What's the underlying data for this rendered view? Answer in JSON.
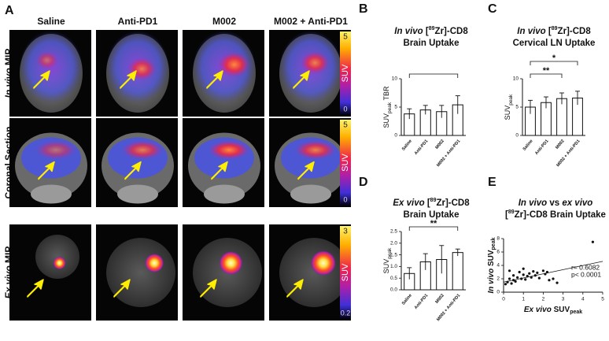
{
  "figure": {
    "label": "A",
    "columns": [
      "Saline",
      "Anti-PD1",
      "M002",
      "M002 + Anti-PD1"
    ],
    "rows": [
      {
        "italic": "In vivo",
        "rest": " MIP"
      },
      {
        "italic": "",
        "rest": "Coronal Section"
      },
      {
        "italic": "Ex vivo",
        "rest": " MIP"
      }
    ],
    "colorbars": [
      {
        "max": "5",
        "min": "0",
        "unit": "SUV"
      },
      {
        "max": "5",
        "min": "0",
        "unit": "SUV"
      },
      {
        "max": "3",
        "min": "0.2",
        "unit": "SUV"
      }
    ]
  },
  "chart_data": [
    {
      "type": "bar",
      "label": "B",
      "title": {
        "italic": "In vivo",
        "pre": " [",
        "sup": "89",
        "post": "Zr]-CD8",
        "line2": "Brain Uptake"
      },
      "ylabel": {
        "main": "SUV",
        "sub": "peak",
        "rest": " TBR"
      },
      "categories": [
        "Saline",
        "Anti-PD1",
        "M002",
        "M002 + Anti-PD1"
      ],
      "values": [
        3.8,
        4.5,
        4.2,
        5.4
      ],
      "errors": [
        0.9,
        0.8,
        1.1,
        1.6
      ],
      "color": "#ffffff",
      "ylim": [
        0,
        10
      ],
      "yticks": [
        0,
        5,
        10
      ],
      "brackets": [
        {
          "label": "",
          "between": [
            "Saline",
            "M002 + Anti-PD1"
          ]
        }
      ]
    },
    {
      "type": "bar",
      "label": "C",
      "title": {
        "italic": "In vivo",
        "pre": " [",
        "sup": "89",
        "post": "Zr]-CD8",
        "line2": "Cervical LN Uptake"
      },
      "ylabel": {
        "main": "SUV",
        "sub": "peak",
        "rest": ""
      },
      "categories": [
        "Saline",
        "Anti-PD1",
        "M002",
        "M002 + Anti-PD1"
      ],
      "values": [
        5.0,
        5.8,
        6.5,
        6.6
      ],
      "errors": [
        1.2,
        1.0,
        1.0,
        1.2
      ],
      "color": "#ffffff",
      "ylim": [
        0,
        10
      ],
      "yticks": [
        0,
        5,
        10
      ],
      "brackets": [
        {
          "label": "**",
          "between": [
            "Saline",
            "M002"
          ]
        },
        {
          "label": "*",
          "between": [
            "Saline",
            "M002 + Anti-PD1"
          ]
        }
      ]
    },
    {
      "type": "bar",
      "label": "D",
      "title": {
        "italic": "Ex vivo",
        "pre": " [",
        "sup": "89",
        "post": "Zr]-CD8",
        "line2": "Brain Uptake"
      },
      "ylabel": {
        "main": "SUV",
        "sub": "peak",
        "rest": ""
      },
      "categories": [
        "Saline",
        "Anti-PD1",
        "M002",
        "M002 + Anti-PD1"
      ],
      "values": [
        0.7,
        1.2,
        1.3,
        1.6
      ],
      "errors": [
        0.25,
        0.35,
        0.6,
        0.15
      ],
      "color": "#ffffff",
      "ylim": [
        0,
        2.5
      ],
      "yticks": [
        {
          "value": 0,
          "label": "0.0"
        },
        0.5,
        {
          "value": 1,
          "label": "1.0"
        },
        1.5,
        {
          "value": 2,
          "label": "2.0"
        },
        2.5
      ],
      "brackets": [
        {
          "label": "**",
          "between": [
            "Saline",
            "M002 + Anti-PD1"
          ]
        }
      ]
    },
    {
      "type": "scatter",
      "label": "E",
      "title": {
        "italic": "In vivo",
        "mid": " vs ",
        "italic2": "ex vivo",
        "pre": "[",
        "sup": "89",
        "post": "Zr]-CD8 Brain Uptake"
      },
      "xlabel": {
        "italic": "Ex vivo",
        "main": " SUV",
        "sub": "peak"
      },
      "ylabel": {
        "italic": "In vivo",
        "main": " SUV",
        "sub": "peak"
      },
      "x": [
        0.1,
        0.2,
        0.3,
        0.4,
        0.5,
        0.5,
        0.6,
        0.7,
        0.8,
        0.9,
        1.0,
        1.1,
        1.2,
        1.3,
        1.4,
        1.5,
        1.6,
        1.7,
        1.8,
        2.0,
        2.1,
        2.2,
        2.3,
        2.5,
        0.3,
        1.0,
        4.5,
        2.7
      ],
      "y": [
        1.2,
        1.5,
        2.0,
        1.3,
        2.5,
        1.8,
        1.6,
        2.2,
        3.0,
        2.0,
        2.6,
        1.9,
        2.4,
        2.8,
        2.2,
        3.1,
        2.5,
        2.9,
        2.1,
        3.2,
        2.7,
        3.0,
        1.8,
        2.0,
        3.2,
        3.5,
        7.5,
        1.4
      ],
      "trend": {
        "x": [
          0,
          5
        ],
        "y": [
          1.5,
          4.6
        ]
      },
      "color": "#111111",
      "xlim": [
        0,
        5
      ],
      "xticks": [
        0,
        1,
        2,
        3,
        4,
        5
      ],
      "ylim": [
        0,
        8
      ],
      "yticks": [
        0,
        2,
        4,
        6,
        8
      ],
      "annotations": [
        "r= 0.6082",
        "p< 0.0001"
      ]
    }
  ]
}
